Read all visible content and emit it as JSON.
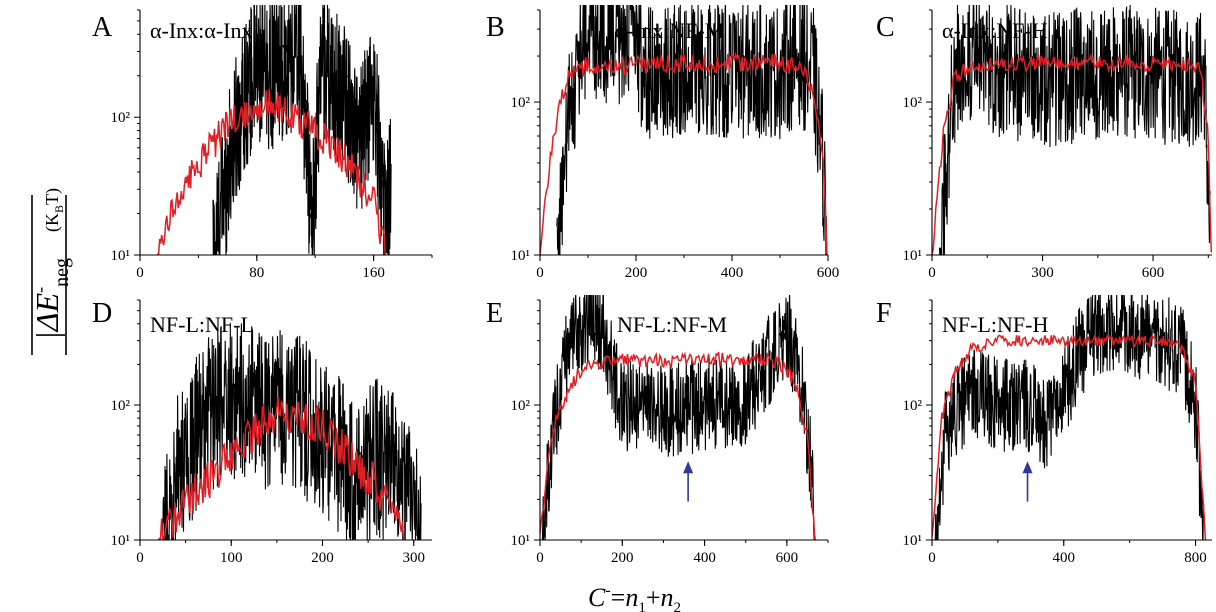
{
  "ylabel": {
    "main": "|ΔE",
    "sup": "-",
    "sub": "neg",
    "units": "(K",
    "units_sub": "B",
    "units_end": "T)"
  },
  "xlabel": {
    "c": "C",
    "c_sup": "-",
    "eq": "=",
    "n1": "n",
    "n1_sub": "1",
    "plus": "+",
    "n2": "n",
    "n2_sub": "2"
  },
  "colors": {
    "black_series": "#000000",
    "red_series": "#e31e24",
    "marker_arrow": "#000000",
    "highlight_arrow": "#2e3a96"
  },
  "chart_data": [
    {
      "panel": "A",
      "title": "α-Inx:α-Inx",
      "type": "line",
      "yscale": "log",
      "xlim": [
        0,
        200
      ],
      "ylim": [
        10,
        600
      ],
      "xticks": [
        0,
        80,
        160
      ],
      "xtick_labels": [
        "0",
        "80",
        "160"
      ],
      "yticks": [
        10,
        100
      ],
      "ytick_labels": [
        "10¹",
        "10²"
      ],
      "series": [
        {
          "color": "black",
          "x": [
            50,
            60,
            70,
            80,
            90,
            100,
            110,
            118,
            124,
            130,
            140,
            150,
            160,
            168,
            172
          ],
          "y": [
            10,
            40,
            130,
            230,
            200,
            250,
            300,
            15,
            300,
            180,
            150,
            60,
            160,
            20,
            35
          ],
          "noise": 0.55
        },
        {
          "color": "red",
          "x": [
            12,
            20,
            40,
            60,
            80,
            90,
            100,
            120,
            140,
            160,
            168
          ],
          "y": [
            10,
            20,
            45,
            90,
            120,
            125,
            110,
            80,
            50,
            25,
            10
          ],
          "noise": 0.12
        }
      ],
      "black_arrows_x": [
        100,
        118,
        140,
        155,
        167
      ],
      "blue_arrows_x": []
    },
    {
      "panel": "B",
      "title": "α-Inx:NF-M",
      "type": "line",
      "yscale": "log",
      "xlim": [
        0,
        600
      ],
      "ylim": [
        10,
        400
      ],
      "xticks": [
        0,
        200,
        400,
        600
      ],
      "xtick_labels": [
        "0",
        "200",
        "400",
        "600"
      ],
      "yticks": [
        10,
        100
      ],
      "ytick_labels": [
        "10¹",
        "10²"
      ],
      "series": [
        {
          "color": "black",
          "x": [
            35,
            60,
            90,
            110,
            150,
            190,
            220,
            260,
            300,
            400,
            500,
            540,
            570,
            590,
            598
          ],
          "y": [
            10,
            80,
            250,
            300,
            260,
            290,
            160,
            150,
            170,
            160,
            160,
            200,
            150,
            40,
            10
          ],
          "noise": 0.45
        },
        {
          "color": "red",
          "x": [
            0,
            20,
            40,
            60,
            100,
            200,
            300,
            400,
            500,
            540,
            570,
            590,
            598
          ],
          "y": [
            10,
            40,
            100,
            150,
            175,
            175,
            180,
            180,
            180,
            170,
            120,
            40,
            10
          ],
          "noise": 0.06
        }
      ],
      "black_arrows_x": [],
      "blue_arrows_x": []
    },
    {
      "panel": "C",
      "title": "α-Inx:NF-H",
      "type": "line",
      "yscale": "log",
      "xlim": [
        0,
        760
      ],
      "ylim": [
        10,
        400
      ],
      "xticks": [
        0,
        300,
        600
      ],
      "xtick_labels": [
        "0",
        "300",
        "600"
      ],
      "yticks": [
        10,
        100
      ],
      "ytick_labels": [
        "10¹",
        "10²"
      ],
      "series": [
        {
          "color": "black",
          "x": [
            20,
            60,
            100,
            200,
            300,
            400,
            500,
            600,
            700,
            740,
            755
          ],
          "y": [
            10,
            150,
            200,
            160,
            140,
            150,
            160,
            150,
            140,
            150,
            10
          ],
          "noise": 0.45
        },
        {
          "color": "red",
          "x": [
            0,
            30,
            60,
            100,
            300,
            500,
            700,
            730,
            750,
            758
          ],
          "y": [
            10,
            60,
            140,
            175,
            180,
            180,
            175,
            160,
            60,
            10
          ],
          "noise": 0.05
        }
      ],
      "black_arrows_x": [],
      "blue_arrows_x": []
    },
    {
      "panel": "D",
      "title": "NF-L:NF-L",
      "type": "line",
      "yscale": "log",
      "xlim": [
        0,
        320
      ],
      "ylim": [
        10,
        600
      ],
      "xticks": [
        0,
        100,
        200,
        300
      ],
      "xtick_labels": [
        "0",
        "100",
        "200",
        "300"
      ],
      "yticks": [
        10,
        100
      ],
      "ytick_labels": [
        "10¹",
        "10²"
      ],
      "series": [
        {
          "color": "black",
          "x": [
            25,
            40,
            60,
            80,
            100,
            120,
            140,
            160,
            180,
            200,
            220,
            240,
            260,
            280,
            300,
            308
          ],
          "y": [
            10,
            30,
            60,
            90,
            110,
            100,
            90,
            100,
            80,
            60,
            40,
            30,
            40,
            30,
            20,
            10
          ],
          "noise": 0.6
        },
        {
          "color": "red",
          "x": [
            20,
            40,
            60,
            80,
            100,
            120,
            140,
            160,
            180,
            200,
            220,
            240,
            260,
            280,
            290
          ],
          "y": [
            10,
            15,
            22,
            30,
            45,
            60,
            75,
            85,
            80,
            70,
            50,
            35,
            25,
            15,
            10
          ],
          "noise": 0.15
        }
      ],
      "black_arrows_x": [
        105,
        272
      ],
      "blue_arrows_x": []
    },
    {
      "panel": "E",
      "title": "NF-L:NF-M",
      "type": "line",
      "yscale": "log",
      "xlim": [
        0,
        700
      ],
      "ylim": [
        10,
        600
      ],
      "xticks": [
        0,
        200,
        400,
        600
      ],
      "xtick_labels": [
        "0",
        "200",
        "400",
        "600"
      ],
      "yticks": [
        10,
        100
      ],
      "ytick_labels": [
        "10¹",
        "10²"
      ],
      "series": [
        {
          "color": "black",
          "x": [
            5,
            30,
            60,
            100,
            130,
            160,
            180,
            200,
            300,
            400,
            500,
            550,
            580,
            600,
            620,
            640,
            660,
            670
          ],
          "y": [
            10,
            60,
            200,
            400,
            450,
            300,
            150,
            100,
            90,
            100,
            110,
            200,
            300,
            350,
            250,
            120,
            30,
            10
          ],
          "noise": 0.35
        },
        {
          "color": "red",
          "x": [
            0,
            20,
            40,
            80,
            120,
            180,
            300,
            400,
            500,
            580,
            620,
            650,
            668
          ],
          "y": [
            10,
            40,
            80,
            150,
            200,
            220,
            210,
            220,
            220,
            210,
            150,
            60,
            10
          ],
          "noise": 0.05
        }
      ],
      "black_arrows_x": [
        128,
        590
      ],
      "blue_arrows_x": [
        360
      ]
    },
    {
      "panel": "F",
      "title": "NF-L:NF-H",
      "type": "line",
      "yscale": "log",
      "xlim": [
        0,
        850
      ],
      "ylim": [
        10,
        600
      ],
      "xticks": [
        0,
        400,
        800
      ],
      "xtick_labels": [
        "0",
        "400",
        "800"
      ],
      "yticks": [
        10,
        100
      ],
      "ytick_labels": [
        "10¹",
        "10²"
      ],
      "series": [
        {
          "color": "black",
          "x": [
            10,
            40,
            80,
            130,
            200,
            300,
            350,
            400,
            450,
            500,
            600,
            700,
            760,
            800,
            825
          ],
          "y": [
            10,
            60,
            100,
            120,
            100,
            100,
            70,
            120,
            250,
            350,
            350,
            300,
            250,
            100,
            10
          ],
          "noise": 0.35
        },
        {
          "color": "red",
          "x": [
            0,
            30,
            70,
            120,
            200,
            300,
            400,
            500,
            600,
            700,
            750,
            800,
            830
          ],
          "y": [
            10,
            80,
            180,
            260,
            300,
            300,
            300,
            300,
            300,
            300,
            280,
            150,
            10
          ],
          "noise": 0.04
        }
      ],
      "black_arrows_x": [],
      "blue_arrows_x": [
        290
      ]
    }
  ]
}
